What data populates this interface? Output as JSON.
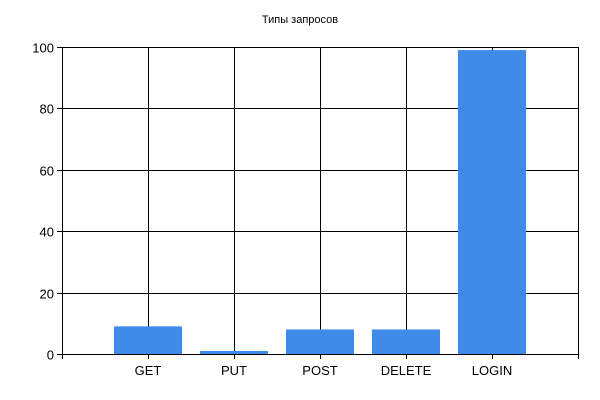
{
  "chart_data": {
    "type": "bar",
    "title": "Типы запросов",
    "xlabel": "",
    "ylabel": "",
    "categories": [
      "GET",
      "PUT",
      "POST",
      "DELETE",
      "LOGIN"
    ],
    "series": [
      {
        "values": [
          9,
          1,
          8,
          8,
          99
        ]
      }
    ],
    "ylim": [
      0,
      100
    ],
    "yticks": [
      0,
      20,
      40,
      60,
      80,
      100
    ],
    "grid": true,
    "legend": "none",
    "colors": {
      "bar": "#3F8BEA",
      "grid": "#000000",
      "axis": "#000000",
      "background": "#FFFFFF"
    }
  }
}
